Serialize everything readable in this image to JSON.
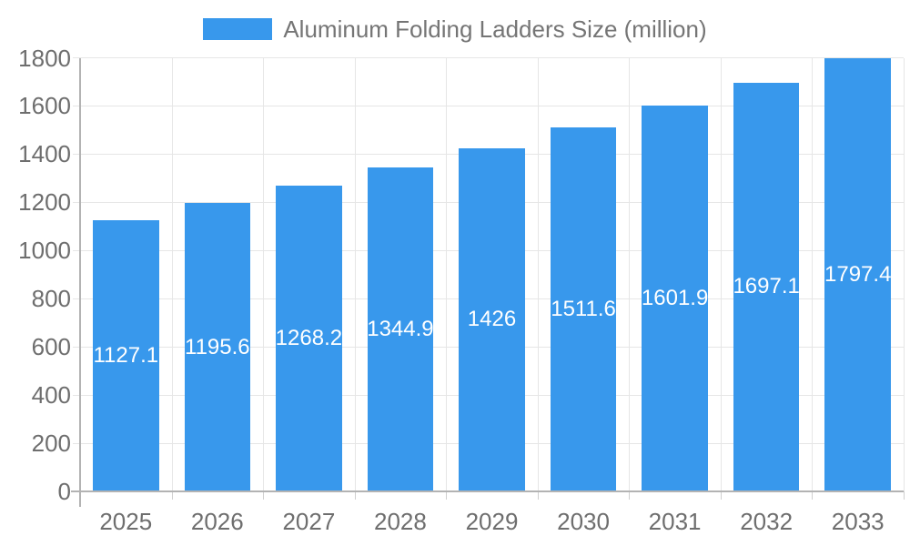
{
  "chart_data": {
    "type": "bar",
    "title": "Aluminum Folding Ladders Size (million)",
    "categories": [
      "2025",
      "2026",
      "2027",
      "2028",
      "2029",
      "2030",
      "2031",
      "2032",
      "2033"
    ],
    "values": [
      1127.1,
      1195.6,
      1268.2,
      1344.9,
      1426,
      1511.6,
      1601.9,
      1697.1,
      1797.4
    ],
    "xlabel": "",
    "ylabel": "",
    "ylim": [
      0,
      1800
    ],
    "yticks": [
      0,
      200,
      400,
      600,
      800,
      1000,
      1200,
      1400,
      1600,
      1800
    ],
    "legend_position": "top",
    "grid": true,
    "colors": {
      "bar": "#3898ec",
      "bar_label": "#ffffff",
      "axis_text": "#6e6e6e",
      "legend_text": "#757575",
      "gridline": "#e6e6e6",
      "tick": "#cfcfcf",
      "axis_line": "#b3b3b3",
      "background": "#ffffff"
    }
  }
}
